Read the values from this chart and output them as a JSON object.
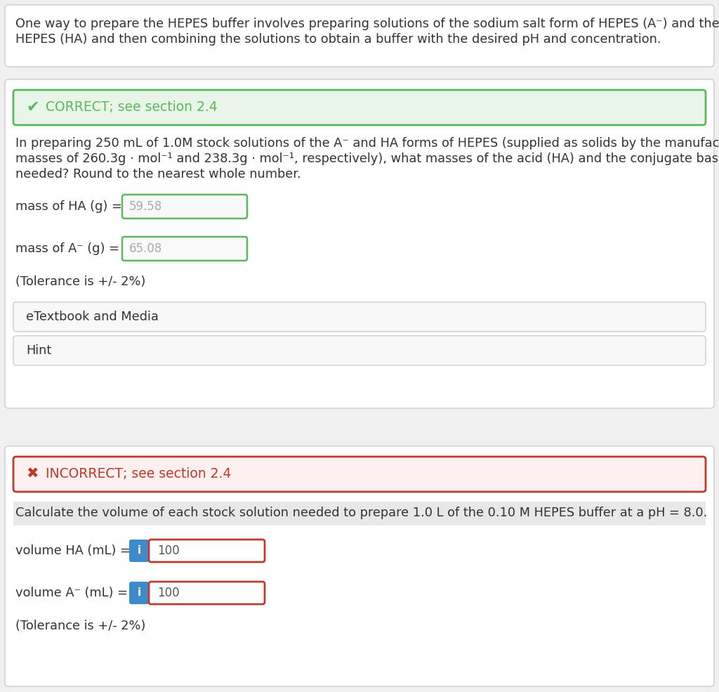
{
  "bg_color": "#f0f0f0",
  "panel_bg": "#ffffff",
  "section1_text_line1": "One way to prepare the HEPES buffer involves preparing solutions of the sodium salt form of HEPES (A⁻) and the weak acid form of",
  "section1_text_line2": "HEPES (HA) and then combining the solutions to obtain a buffer with the desired pH and concentration.",
  "correct_banner_bg": "#eaf5ea",
  "correct_banner_border": "#5cb85c",
  "correct_banner_text": "CORRECT; see section 2.4",
  "correct_icon_color": "#5cb85c",
  "q1_line1": "In preparing 250 mL of 1.0M stock solutions of the A⁻ and HA forms of HEPES (supplied as solids by the manufacturer with molar",
  "q1_line2": "masses of 260.3g · mol⁻¹ and 238.3g · mol⁻¹, respectively), what masses of the acid (HA) and the conjugate base (A⁻) would be",
  "q1_line3": "needed? Round to the nearest whole number.",
  "mass_ha_label": "mass of HA (g) =",
  "mass_ha_value": "59.58",
  "mass_a_label": "mass of A⁻ (g) =",
  "mass_a_value": "65.08",
  "input_bg_correct": "#f9f9f9",
  "input_border_correct": "#5cb85c",
  "tolerance_text": "(Tolerance is +/- 2%)",
  "etextbook_text": "eTextbook and Media",
  "hint_text": "Hint",
  "incorrect_banner_bg": "#fdf0f0",
  "incorrect_banner_border": "#c0392b",
  "incorrect_banner_text": "INCORRECT; see section 2.4",
  "incorrect_icon_color": "#c0392b",
  "question2_text": "Calculate the volume of each stock solution needed to prepare 1.0 L of the 0.10 M HEPES buffer at a pH = 8.0.",
  "question2_bg": "#e8e8e8",
  "vol_ha_label": "volume HA (mL) =",
  "vol_ha_value": "100",
  "vol_a_label": "volume A⁻ (mL) =",
  "vol_a_value": "100",
  "input_bg_incorrect": "#ffffff",
  "input_border_incorrect": "#c0392b",
  "info_btn_color": "#3d8bc9",
  "info_btn_text": "i",
  "text_color": "#555555",
  "text_color_dark": "#333333",
  "border_color": "#cccccc"
}
